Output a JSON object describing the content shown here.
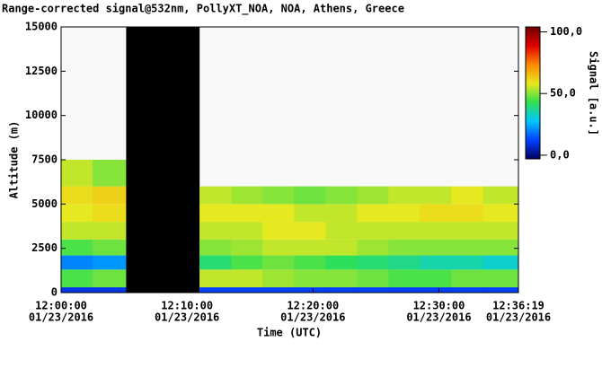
{
  "chart_data": {
    "type": "heatmap",
    "title": "Range-corrected signal@532nm, PollyXT_NOA, NOA, Athens, Greece",
    "xlabel": "Time (UTC)",
    "ylabel": "Altitude (m)",
    "colorbar_label": "Signal [a.u.]",
    "x": [
      "2016-01-23T12:00:00",
      "2016-01-23T12:02:30",
      "2016-01-23T12:05:10",
      "2016-01-23T12:11:00",
      "2016-01-23T12:13:30",
      "2016-01-23T12:16:00",
      "2016-01-23T12:18:30",
      "2016-01-23T12:21:00",
      "2016-01-23T12:23:30",
      "2016-01-23T12:26:00",
      "2016-01-23T12:28:30",
      "2016-01-23T12:31:00",
      "2016-01-23T12:33:30",
      "2016-01-23T12:36:19"
    ],
    "y": [
      0,
      300,
      1300,
      2100,
      3000,
      4000,
      5000,
      6000,
      7500
    ],
    "values": [
      [
        10,
        45,
        20,
        45,
        55,
        58,
        60,
        55
      ],
      [
        10,
        48,
        22,
        48,
        55,
        60,
        62,
        50
      ],
      [
        null,
        null,
        null,
        null,
        null,
        null,
        null,
        null
      ],
      [
        12,
        55,
        40,
        50,
        55,
        58,
        55,
        null
      ],
      [
        12,
        55,
        45,
        52,
        55,
        58,
        52,
        null
      ],
      [
        12,
        52,
        48,
        55,
        58,
        58,
        50,
        null
      ],
      [
        12,
        50,
        45,
        55,
        58,
        55,
        48,
        null
      ],
      [
        12,
        50,
        42,
        55,
        55,
        55,
        50,
        null
      ],
      [
        12,
        48,
        40,
        52,
        55,
        58,
        52,
        null
      ],
      [
        12,
        45,
        38,
        50,
        55,
        58,
        55,
        null
      ],
      [
        12,
        45,
        35,
        50,
        55,
        60,
        55,
        null
      ],
      [
        12,
        48,
        35,
        50,
        55,
        60,
        58,
        null
      ],
      [
        12,
        48,
        32,
        50,
        55,
        58,
        55,
        null
      ]
    ],
    "xlim": [
      "2016-01-23T12:00:00",
      "2016-01-23T12:36:19"
    ],
    "xticks": [
      {
        "value": "2016-01-23T12:00:00",
        "label": [
          "12:00:00",
          "01/23/2016"
        ]
      },
      {
        "value": "2016-01-23T12:10:00",
        "label": [
          "12:10:00",
          "01/23/2016"
        ]
      },
      {
        "value": "2016-01-23T12:20:00",
        "label": [
          "12:20:00",
          "01/23/2016"
        ]
      },
      {
        "value": "2016-01-23T12:30:00",
        "label": [
          "12:30:00",
          "01/23/2016"
        ]
      },
      {
        "value": "2016-01-23T12:36:19",
        "label": [
          "12:36:19",
          "01/23/2016"
        ]
      }
    ],
    "ylim": [
      0,
      15000
    ],
    "yticks": [
      0,
      2500,
      5000,
      7500,
      10000,
      12500,
      15000
    ],
    "clim": [
      -3,
      104
    ],
    "cticks": [
      {
        "value": 0,
        "label": "0,0"
      },
      {
        "value": 50,
        "label": "50,0"
      },
      {
        "value": 100,
        "label": "100,0"
      }
    ],
    "colormap": [
      "#000060",
      "#0040ff",
      "#00c8ff",
      "#30e050",
      "#e8e820",
      "#ff8800",
      "#e00000",
      "#700000"
    ]
  }
}
